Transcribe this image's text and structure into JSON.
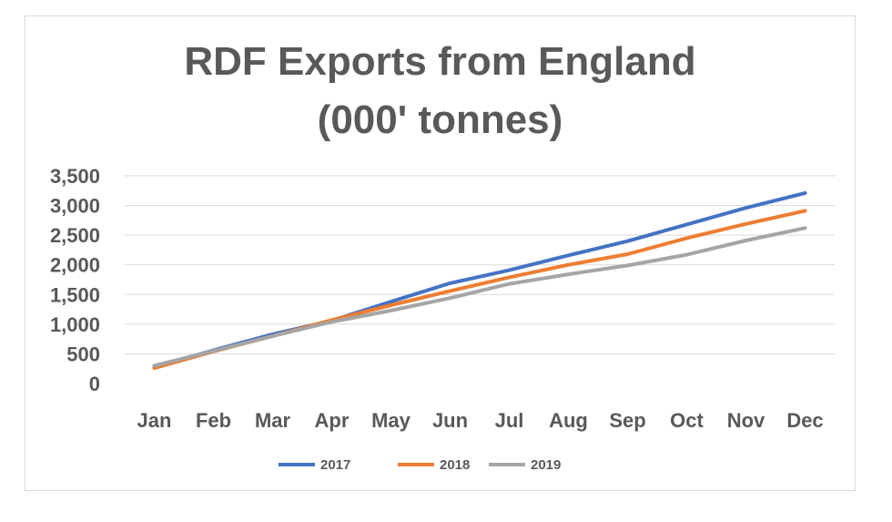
{
  "chart_data": {
    "type": "line",
    "title_lines": [
      "RDF Exports from England",
      "(000' tonnes)"
    ],
    "xlabel": "",
    "ylabel": "",
    "categories": [
      "Jan",
      "Feb",
      "Mar",
      "Apr",
      "May",
      "Jun",
      "Jul",
      "Aug",
      "Sep",
      "Oct",
      "Nov",
      "Dec"
    ],
    "ylim": [
      0,
      3500
    ],
    "yticks": [
      0,
      500,
      1000,
      1500,
      2000,
      2500,
      3000,
      3500
    ],
    "ytick_labels": [
      "0",
      "500",
      "1,000",
      "1,500",
      "2,000",
      "2,500",
      "3,000",
      "3,500"
    ],
    "grid": true,
    "legend_position": "bottom",
    "series": [
      {
        "name": "2017",
        "color": "#4472C4",
        "values": [
          280,
          560,
          830,
          1060,
          1380,
          1690,
          1910,
          2160,
          2400,
          2680,
          2960,
          3210
        ]
      },
      {
        "name": "2018",
        "color": "#ED7D31",
        "values": [
          260,
          540,
          800,
          1070,
          1320,
          1560,
          1790,
          2000,
          2180,
          2450,
          2690,
          2910
        ]
      },
      {
        "name": "2019",
        "color": "#A5A5A5",
        "values": [
          300,
          550,
          800,
          1040,
          1230,
          1440,
          1680,
          1840,
          1990,
          2170,
          2410,
          2620
        ]
      }
    ]
  }
}
